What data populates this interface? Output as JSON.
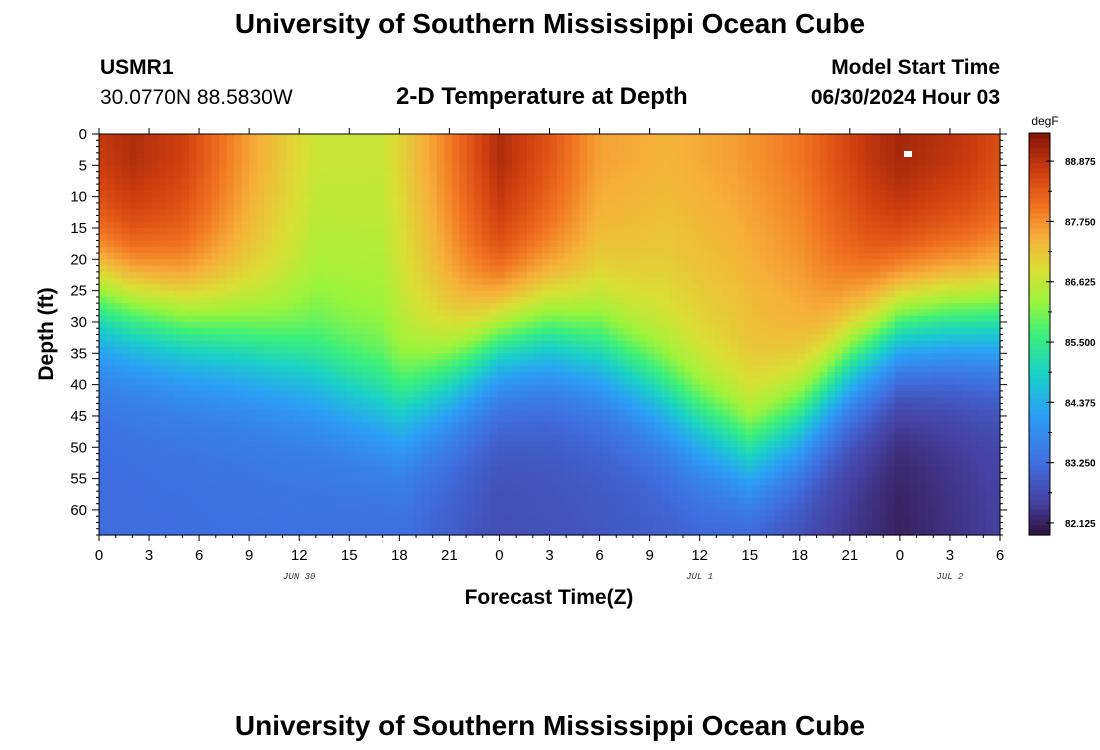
{
  "header": {
    "title_top": "University of Southern Mississippi Ocean Cube",
    "station": "USMR1",
    "coords": "30.0770N  88.5830W",
    "plot_title": "2-D Temperature at Depth",
    "model_start_label": "Model Start Time",
    "model_start_value": "06/30/2024 Hour 03",
    "title_bottom": "University of Southern Mississippi Ocean Cube"
  },
  "chart_data": {
    "type": "heatmap",
    "title": "2-D Temperature at Depth",
    "xlabel": "Forecast Time(Z)",
    "ylabel": "Depth (ft)",
    "x_hours_range": [
      0,
      54
    ],
    "x_tick_hours": [
      0,
      3,
      6,
      9,
      12,
      15,
      18,
      21,
      24,
      27,
      30,
      33,
      36,
      39,
      42,
      45,
      48,
      51,
      54
    ],
    "x_tick_labels": [
      "0",
      "3",
      "6",
      "9",
      "12",
      "15",
      "18",
      "21",
      "0",
      "3",
      "6",
      "9",
      "12",
      "15",
      "18",
      "21",
      "0",
      "3",
      "6"
    ],
    "date_labels": [
      {
        "hour": 12,
        "text": "JUN 30"
      },
      {
        "hour": 36,
        "text": "JUL 1"
      },
      {
        "hour": 51,
        "text": "JUL 2"
      }
    ],
    "ylim": [
      0,
      64
    ],
    "y_ticks": [
      0,
      5,
      10,
      15,
      20,
      25,
      30,
      35,
      40,
      45,
      50,
      55,
      60
    ],
    "y_tick_labels": [
      "0",
      "5",
      "10",
      "15",
      "20",
      "25",
      "30",
      "35",
      "40",
      "45",
      "50",
      "55",
      "60"
    ],
    "colorbar": {
      "unit": "degF",
      "min": 81.9,
      "max": 89.4,
      "ticks": [
        82.125,
        83.25,
        84.375,
        85.5,
        86.625,
        87.75,
        88.875
      ],
      "tick_labels": [
        "82.125",
        "83.250",
        "84.375",
        "85.500",
        "86.625",
        "87.750",
        "88.875"
      ]
    },
    "surface_profile_degF": {
      "hours": [
        0,
        2,
        5,
        9,
        13,
        17,
        20,
        24,
        27,
        30,
        34,
        38,
        42,
        46,
        48,
        52,
        54
      ],
      "values": [
        88.8,
        89.0,
        88.7,
        87.6,
        86.7,
        86.7,
        87.6,
        89.0,
        88.4,
        87.6,
        87.4,
        87.6,
        88.0,
        88.8,
        89.1,
        88.8,
        88.5
      ]
    },
    "thermocline_depth_ft": {
      "hours": [
        0,
        4,
        8,
        12,
        15,
        18,
        21,
        24,
        27,
        30,
        33,
        36,
        39,
        42,
        45,
        48,
        51,
        54
      ],
      "values": [
        27,
        30,
        33,
        37,
        41,
        44,
        39,
        33,
        32,
        35,
        40,
        46,
        51,
        46,
        37,
        31,
        30,
        30
      ]
    },
    "deep_values_degF": {
      "hours": [
        0,
        12,
        18,
        24,
        36,
        42,
        48,
        54
      ],
      "values": [
        83.2,
        83.3,
        83.2,
        82.7,
        83.0,
        82.6,
        82.1,
        82.5
      ]
    }
  }
}
